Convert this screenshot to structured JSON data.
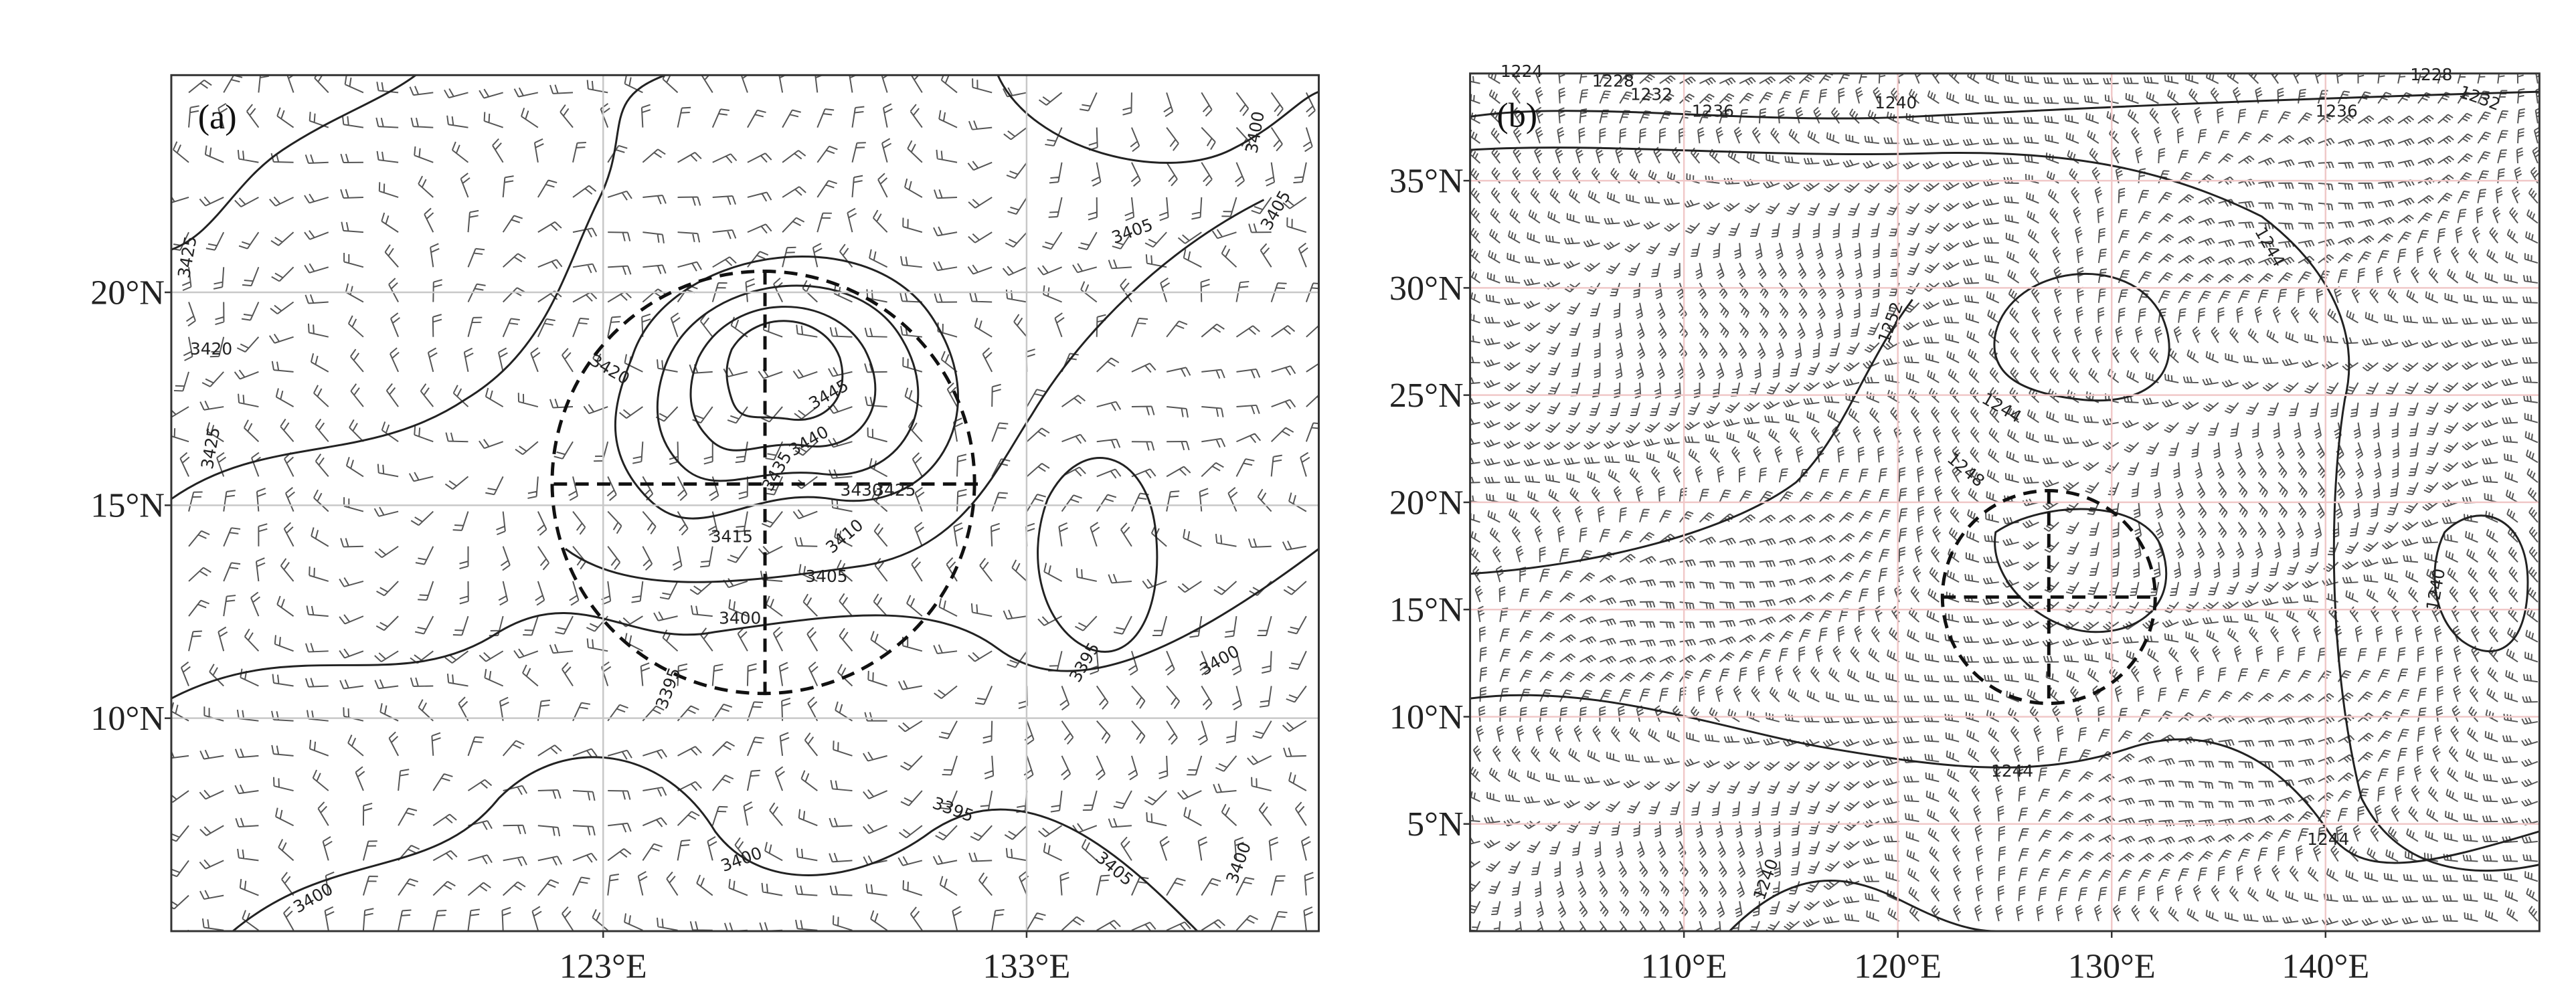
{
  "panels": [
    {
      "label": "(a)",
      "xlim": [
        112.8,
        139.9
      ],
      "ylim": [
        5,
        25.1
      ],
      "xticks": [
        {
          "value": 123,
          "label": "123°E"
        },
        {
          "value": 133,
          "label": "133°E"
        }
      ],
      "yticks": [
        {
          "value": 10,
          "label": "10°N"
        },
        {
          "value": 15,
          "label": "15°N"
        },
        {
          "value": 20,
          "label": "20°N"
        }
      ],
      "contour_labels": [
        3425,
        3420,
        3425,
        3420,
        3445,
        3440,
        3435,
        3430,
        3425,
        3415,
        3410,
        3405,
        3400,
        3395,
        3405,
        3400,
        3405,
        3395,
        3400,
        3395,
        3400,
        3405,
        3400,
        3400
      ]
    },
    {
      "label": "(b)",
      "xlim": [
        100,
        150
      ],
      "ylim": [
        0,
        40
      ],
      "xticks": [
        {
          "value": 110,
          "label": "110°E"
        },
        {
          "value": 120,
          "label": "120°E"
        },
        {
          "value": 130,
          "label": "130°E"
        },
        {
          "value": 140,
          "label": "140°E"
        }
      ],
      "yticks": [
        {
          "value": 5,
          "label": "5°N"
        },
        {
          "value": 10,
          "label": "10°N"
        },
        {
          "value": 15,
          "label": "15°N"
        },
        {
          "value": 20,
          "label": "20°N"
        },
        {
          "value": 25,
          "label": "25°N"
        },
        {
          "value": 30,
          "label": "30°N"
        },
        {
          "value": 35,
          "label": "35°N"
        }
      ],
      "contour_labels": [
        1224,
        1228,
        1232,
        1236,
        1240,
        1228,
        1232,
        1236,
        1244,
        1252,
        1244,
        1248,
        1240,
        1244,
        1244,
        1240
      ]
    }
  ]
}
